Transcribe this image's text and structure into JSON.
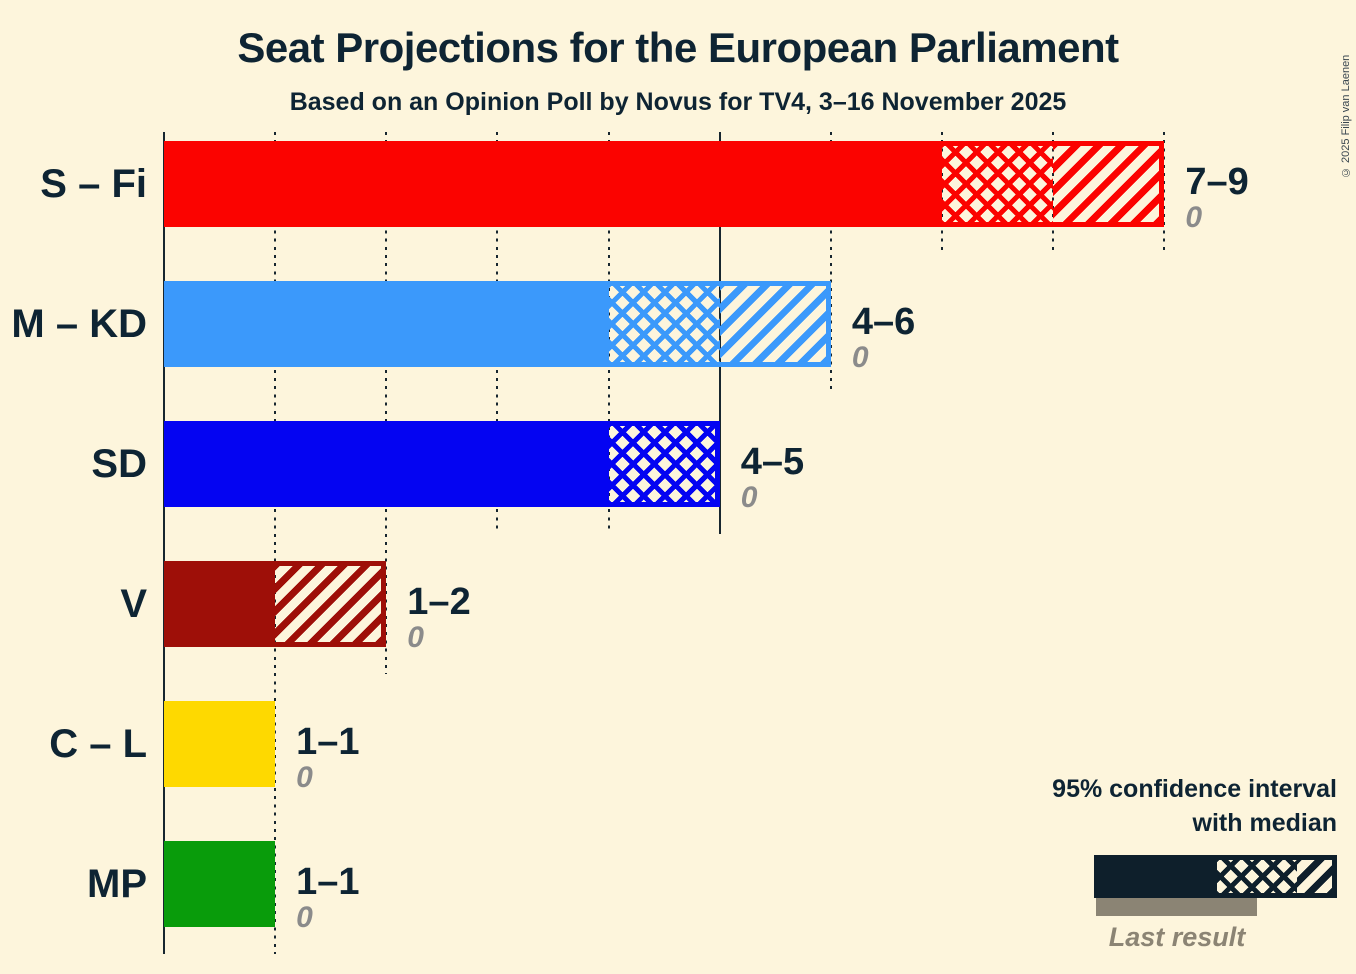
{
  "page": {
    "copyright": "© 2025 Filip van Laenen"
  },
  "chart_data": {
    "type": "bar",
    "orientation": "horizontal",
    "title": "Seat Projections for the European Parliament",
    "subtitle": "Based on an Opinion Poll by Novus for TV4, 3–16 November 2025",
    "xlim": [
      0,
      9
    ],
    "grid": "vertical dotted every 1 seat, solid at 0 and 5",
    "solid_gridlines_at": [
      0,
      5
    ],
    "series": [
      {
        "party": "S – Fi",
        "color": "#fb0300",
        "ci_low": 7,
        "median": 8,
        "ci_high": 9,
        "range_label": "7–9",
        "last_result": "0"
      },
      {
        "party": "M – KD",
        "color": "#3b99fb",
        "ci_low": 4,
        "median": 5,
        "ci_high": 6,
        "range_label": "4–6",
        "last_result": "0"
      },
      {
        "party": "SD",
        "color": "#0404f2",
        "ci_low": 4,
        "median": 5,
        "ci_high": 5,
        "range_label": "4–5",
        "last_result": "0"
      },
      {
        "party": "V",
        "color": "#9e0f08",
        "ci_low": 1,
        "median": 1,
        "ci_high": 2,
        "range_label": "1–2",
        "last_result": "0"
      },
      {
        "party": "C – L",
        "color": "#fed900",
        "ci_low": 1,
        "median": 1,
        "ci_high": 1,
        "range_label": "1–1",
        "last_result": "0"
      },
      {
        "party": "MP",
        "color": "#099c0b",
        "ci_low": 1,
        "median": 1,
        "ci_high": 1,
        "range_label": "1–1",
        "last_result": "0"
      }
    ]
  },
  "legend": {
    "title_line1": "95% confidence interval",
    "title_line2": "with median",
    "last_result_label": "Last result",
    "sample_color": "#0e1f2b",
    "last_result_color": "#8b8474"
  },
  "colors": {
    "background": "#fdf5dc",
    "ink": "#0e2433",
    "gridline": "#17262f",
    "muted_value": "#8b8b8b"
  }
}
